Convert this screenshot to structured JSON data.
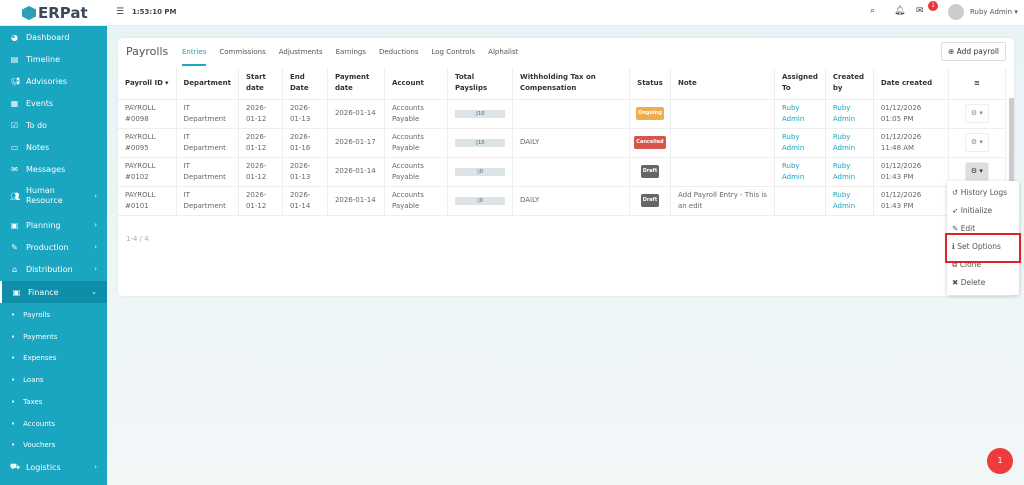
{
  "app": {
    "logo": "ERPat",
    "time": "1:53:10 PM",
    "user": "Ruby Admin",
    "notification_count": "1",
    "fab_count": "1"
  },
  "sidebar": {
    "items": [
      {
        "label": "Dashboard",
        "icon": "dashboard-icon"
      },
      {
        "label": "Timeline",
        "icon": "timeline-icon"
      },
      {
        "label": "Advisories",
        "icon": "megaphone-icon"
      },
      {
        "label": "Events",
        "icon": "calendar-icon"
      },
      {
        "label": "To do",
        "icon": "checkbox-icon"
      },
      {
        "label": "Notes",
        "icon": "notes-icon"
      },
      {
        "label": "Messages",
        "icon": "messages-icon"
      },
      {
        "label": "Human Resource",
        "icon": "users-icon"
      },
      {
        "label": "Planning",
        "icon": "planning-icon"
      },
      {
        "label": "Production",
        "icon": "production-icon"
      },
      {
        "label": "Distribution",
        "icon": "bank-icon"
      },
      {
        "label": "Finance",
        "icon": "money-icon"
      }
    ],
    "finance_sub": [
      "Payrolls",
      "Payments",
      "Expenses",
      "Loans",
      "Taxes",
      "Accounts",
      "Vouchers"
    ],
    "last": {
      "label": "Logistics",
      "icon": "truck-icon"
    }
  },
  "page": {
    "title": "Payrolls",
    "tabs": [
      "Entries",
      "Commissions",
      "Adjustments",
      "Earnings",
      "Deductions",
      "Log Controls",
      "Alphalist"
    ],
    "add_button": "Add payroll",
    "count": "1-4 / 4"
  },
  "table": {
    "headers": [
      "Payroll ID",
      "Department",
      "Start date",
      "End Date",
      "Payment date",
      "Account",
      "Total Payslips",
      "Withholding Tax on Compensation",
      "Status",
      "Note",
      "Assigned To",
      "Created by",
      "Date created"
    ],
    "rows": [
      {
        "id": "PAYROLL #0098",
        "dept": "IT Department",
        "start": "2026-01-12",
        "end": "2026-01-13",
        "payment": "2026-01-14",
        "account": "Accounts Payable",
        "payslips": "10",
        "tax": "",
        "status": "Ongoing",
        "status_color": "#f0ad4e",
        "note": "",
        "assigned": "Ruby Admin",
        "created": "Ruby Admin",
        "date": "01/12/2026 01:05 PM"
      },
      {
        "id": "PAYROLL #0095",
        "dept": "IT Department",
        "start": "2026-01-12",
        "end": "2026-01-16",
        "payment": "2026-01-17",
        "account": "Accounts Payable",
        "payslips": "10",
        "tax": "DAILY",
        "status": "Cancelled",
        "status_color": "#d9534f",
        "note": "",
        "assigned": "Ruby Admin",
        "created": "Ruby Admin",
        "date": "01/12/2026 11:48 AM"
      },
      {
        "id": "PAYROLL #0102",
        "dept": "IT Department",
        "start": "2026-01-12",
        "end": "2026-01-13",
        "payment": "2026-01-14",
        "account": "Accounts Payable",
        "payslips": "0",
        "tax": "",
        "status": "Draft",
        "status_color": "#666666",
        "note": "",
        "assigned": "Ruby Admin",
        "created": "Ruby Admin",
        "date": "01/12/2026 01:43 PM"
      },
      {
        "id": "PAYROLL #0101",
        "dept": "IT Department",
        "start": "2026-01-12",
        "end": "2026-01-14",
        "payment": "2026-01-14",
        "account": "Accounts Payable",
        "payslips": "0",
        "tax": "DAILY",
        "status": "Draft",
        "status_color": "#666666",
        "note": "Add Payroll Entry - This is an edit",
        "assigned": "",
        "created": "Ruby Admin",
        "date": "01/12/2026 01:43 PM"
      }
    ]
  },
  "dropdown": [
    {
      "label": "History Logs",
      "icon": "history-icon"
    },
    {
      "label": "Initialize",
      "icon": "rocket-icon"
    },
    {
      "label": "Edit",
      "icon": "pencil-icon"
    },
    {
      "label": "Set Options",
      "icon": "info-icon"
    },
    {
      "label": "Clone",
      "icon": "clone-icon"
    },
    {
      "label": "Delete",
      "icon": "close-icon"
    }
  ]
}
